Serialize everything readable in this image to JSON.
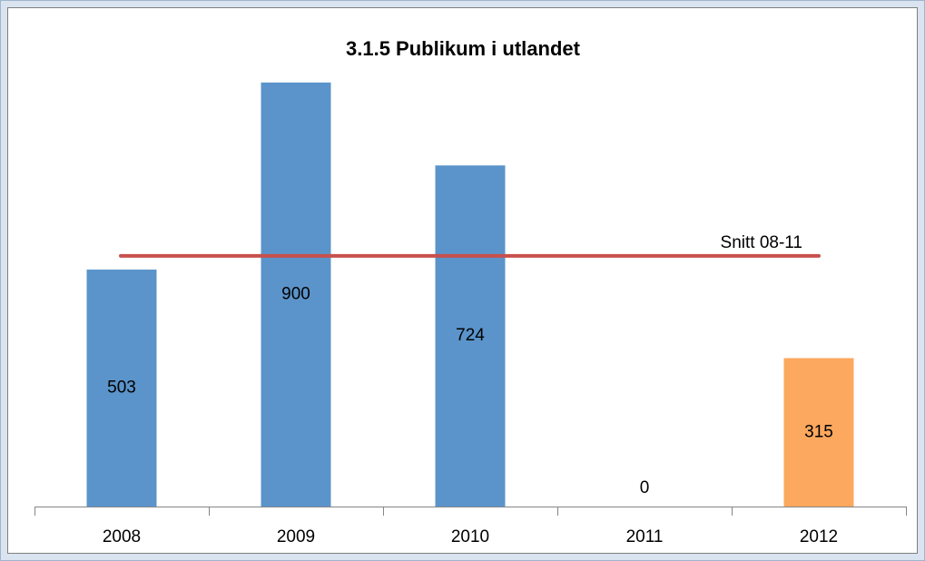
{
  "chart_data": {
    "type": "bar",
    "title": "3.1.5 Publikum i utlandet",
    "categories": [
      "2008",
      "2009",
      "2010",
      "2011",
      "2012"
    ],
    "values": [
      503,
      900,
      724,
      0,
      315
    ],
    "colors": [
      "#5b94ca",
      "#5b94ca",
      "#5b94ca",
      "#5b94ca",
      "#fca85e"
    ],
    "ylim": [
      0,
      1000
    ],
    "reference_line": {
      "label": "Snitt 08-11",
      "value": 532,
      "color": "#c8504d"
    }
  }
}
